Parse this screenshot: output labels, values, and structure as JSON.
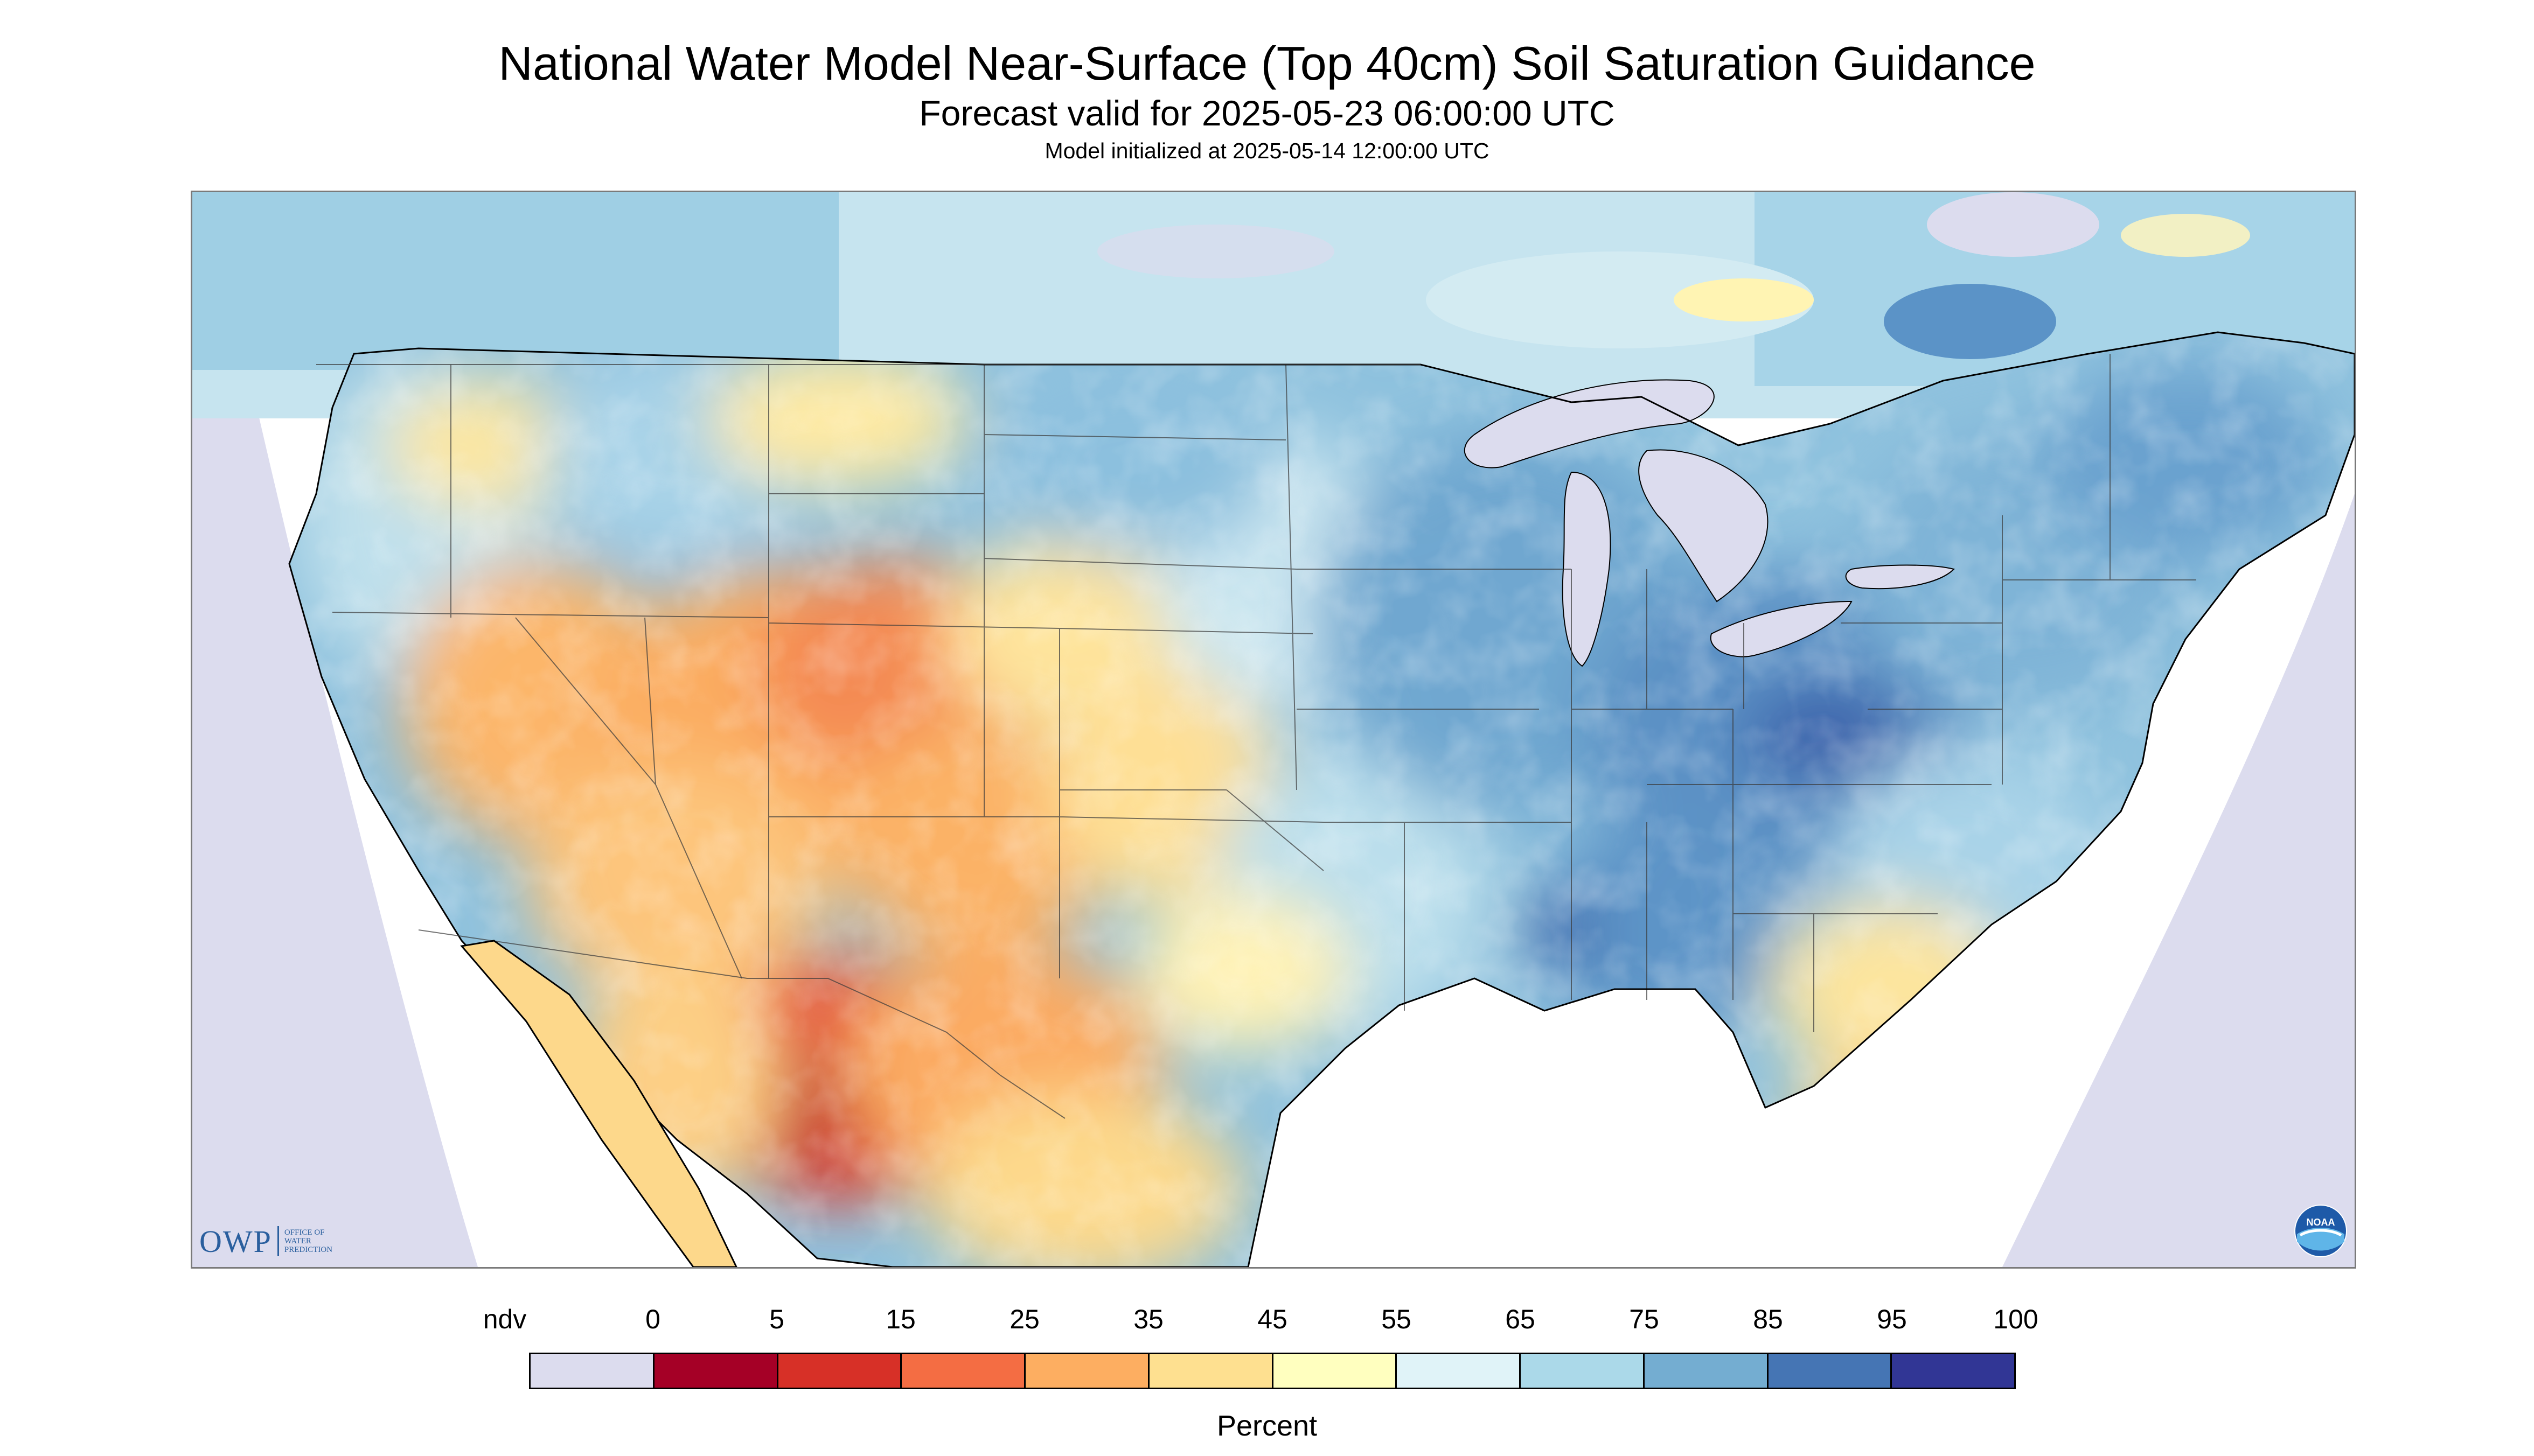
{
  "title": "National Water Model Near-Surface (Top 40cm) Soil Saturation Guidance",
  "subtitle": "Forecast valid for 2025-05-23 06:00:00 UTC",
  "init_line": "Model initialized at 2025-05-14 12:00:00 UTC",
  "legend": {
    "units": "Percent",
    "labels": [
      "ndv",
      "0",
      "5",
      "15",
      "25",
      "35",
      "45",
      "55",
      "65",
      "75",
      "85",
      "95",
      "100"
    ],
    "bins": [
      {
        "range": "ndv",
        "color": "#dcdcee"
      },
      {
        "range": "0-5",
        "color": "#a50026"
      },
      {
        "range": "5-15",
        "color": "#d73027"
      },
      {
        "range": "15-25",
        "color": "#f46d43"
      },
      {
        "range": "25-35",
        "color": "#fdae61"
      },
      {
        "range": "35-45",
        "color": "#fee090"
      },
      {
        "range": "45-55",
        "color": "#ffffbf"
      },
      {
        "range": "55-65",
        "color": "#e0f3f8"
      },
      {
        "range": "65-75",
        "color": "#abd9e9"
      },
      {
        "range": "75-85",
        "color": "#74add1"
      },
      {
        "range": "85-95",
        "color": "#4575b4"
      },
      {
        "range": "95-100",
        "color": "#313695"
      }
    ]
  },
  "logos": {
    "owp": {
      "main": "OWP",
      "sub_lines": [
        "OFFICE OF",
        "WATER",
        "PREDICTION"
      ],
      "icon": "owp-logo"
    },
    "noaa": {
      "text": "NOAA",
      "icon": "noaa-logo"
    }
  },
  "map": {
    "region": "Contiguous United States",
    "layers": [
      "soil-saturation-raster",
      "state-boundaries",
      "great-lakes",
      "ocean",
      "no-data-area"
    ]
  }
}
